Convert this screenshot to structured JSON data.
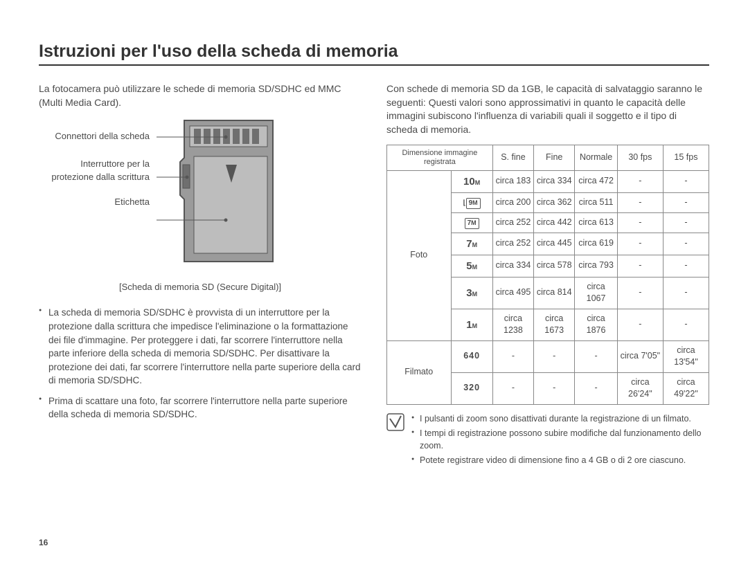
{
  "page_number": "16",
  "title": "Istruzioni per l'uso della scheda di memoria",
  "left": {
    "intro": "La fotocamera può utilizzare le schede di memoria SD/SDHC ed MMC (Multi Media Card).",
    "labels": {
      "connectors": "Connettori della scheda",
      "switch": "Interruttore per la protezione dalla scrittura",
      "label": "Etichetta"
    },
    "caption": "[Scheda di memoria SD (Secure Digital)]",
    "bullets": [
      "La scheda di memoria SD/SDHC è provvista di un interruttore per la protezione dalla scrittura che impedisce l'eliminazione o la formattazione dei file d'immagine. Per proteggere i dati, far scorrere l'interruttore nella parte inferiore della scheda di memoria SD/SDHC. Per disattivare la protezione dei dati, far scorrere l'interruttore nella parte superiore della card di memoria SD/SDHC.",
      "Prima di scattare una foto, far scorrere l'interruttore nella parte superiore della scheda di memoria SD/SDHC."
    ]
  },
  "right": {
    "intro": "Con schede di memoria SD da 1GB, le capacità di salvataggio saranno le seguenti: Questi valori sono approssimativi in quanto le capacità delle immagini subiscono l'influenza di variabili quali il soggetto e il tipo di scheda di memoria.",
    "table": {
      "header": {
        "dim": "Dimensione immagine registrata",
        "sfine": "S. fine",
        "fine": "Fine",
        "normale": "Normale",
        "fps30": "30 fps",
        "fps15": "15 fps"
      },
      "foto_label": "Foto",
      "filmato_label": "Filmato",
      "foto_rows": [
        {
          "icon": "10M",
          "sfine": "circa 183",
          "fine": "circa 334",
          "normale": "circa 472",
          "fps30": "-",
          "fps15": "-"
        },
        {
          "icon": "9M",
          "sfine": "circa 200",
          "fine": "circa 362",
          "normale": "circa 511",
          "fps30": "-",
          "fps15": "-",
          "boxed": true,
          "prefix": true
        },
        {
          "icon": "7M",
          "sfine": "circa 252",
          "fine": "circa 442",
          "normale": "circa 613",
          "fps30": "-",
          "fps15": "-",
          "boxed": true
        },
        {
          "icon": "7M",
          "sfine": "circa 252",
          "fine": "circa 445",
          "normale": "circa 619",
          "fps30": "-",
          "fps15": "-"
        },
        {
          "icon": "5M",
          "sfine": "circa 334",
          "fine": "circa 578",
          "normale": "circa 793",
          "fps30": "-",
          "fps15": "-"
        },
        {
          "icon": "3M",
          "sfine": "circa 495",
          "fine": "circa 814",
          "normale": "circa 1067",
          "fps30": "-",
          "fps15": "-"
        },
        {
          "icon": "1M",
          "sfine": "circa 1238",
          "fine": "circa 1673",
          "normale": "circa 1876",
          "fps30": "-",
          "fps15": "-"
        }
      ],
      "filmato_rows": [
        {
          "size": "640",
          "sfine": "-",
          "fine": "-",
          "normale": "-",
          "fps30": "circa 7'05\"",
          "fps15": "circa 13'54\""
        },
        {
          "size": "320",
          "sfine": "-",
          "fine": "-",
          "normale": "-",
          "fps30": "circa 26'24\"",
          "fps15": "circa 49'22\""
        }
      ]
    },
    "notes": [
      "I pulsanti di zoom sono disattivati durante la registrazione di un filmato.",
      "I tempi di registrazione possono subire modifiche dal funzionamento dello zoom.",
      "Potete registrare video di dimensione fino a 4 GB o di 2 ore ciascuno."
    ]
  },
  "colors": {
    "sd_body": "#9b9b9b",
    "sd_outline": "#555555",
    "sd_inner": "#bdbdbd",
    "sd_dark": "#6f6f6f"
  }
}
